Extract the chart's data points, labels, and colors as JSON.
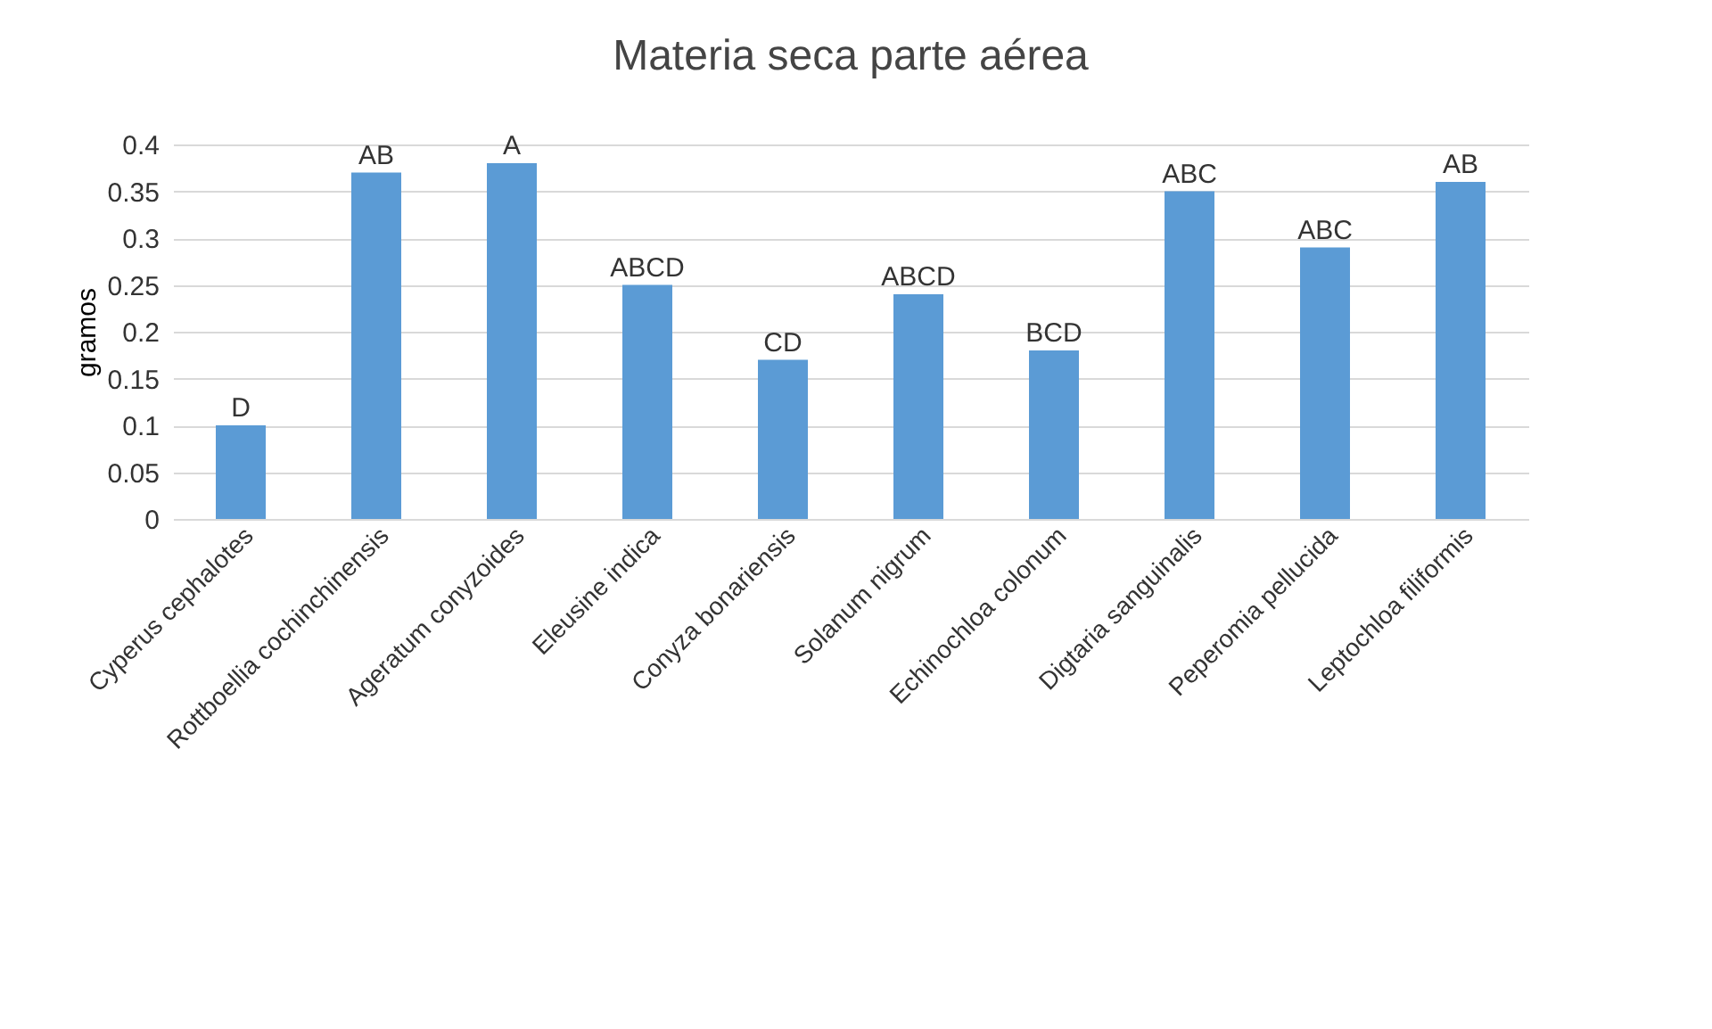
{
  "chart_data": {
    "type": "bar",
    "title": "Materia seca parte aérea",
    "ylabel": "gramos",
    "categories": [
      "Cyperus cephalotes",
      "Rottboellia cochinchinensis",
      "Ageratum conyzoides",
      "Eleusine indica",
      "Conyza bonariensis",
      "Solanum nigrum",
      "Echinochloa colonum",
      "Digtaria sanguinalis",
      "Peperomia pellucida",
      "Leptochloa filiformis"
    ],
    "values": [
      0.1,
      0.37,
      0.38,
      0.25,
      0.17,
      0.24,
      0.18,
      0.35,
      0.29,
      0.36
    ],
    "value_labels": [
      "D",
      "AB",
      "A",
      "ABCD",
      "CD",
      "ABCD",
      "BCD",
      "ABC",
      "ABC",
      "AB"
    ],
    "color": "#5b9bd5",
    "ylim": [
      0,
      0.4
    ],
    "yticks": [
      0,
      0.05,
      0.1,
      0.15,
      0.2,
      0.25,
      0.3,
      0.35,
      0.4
    ],
    "grid": "y"
  }
}
